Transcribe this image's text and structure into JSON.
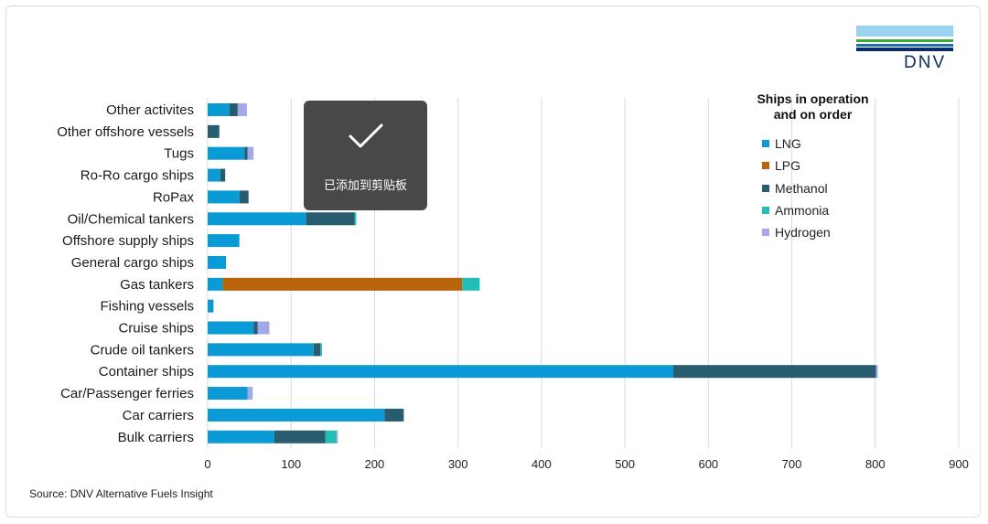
{
  "source_text": "Source: DNV Alternative Fuels Insight",
  "logo_text": "DNV",
  "toast": {
    "text": "已添加到剪贴板",
    "icon": "checkmark-icon"
  },
  "chart_data": {
    "type": "bar",
    "orientation": "horizontal",
    "stacked": true,
    "legend_title": "Ships in operation\nand on order",
    "legend_position": "right",
    "grid": true,
    "xlim": [
      0,
      900
    ],
    "xticks": [
      0,
      100,
      200,
      300,
      400,
      500,
      600,
      700,
      800,
      900
    ],
    "categories": [
      "Other activites",
      "Other offshore vessels",
      "Tugs",
      "Ro-Ro cargo ships",
      "RoPax",
      "Oil/Chemical tankers",
      "Offshore supply ships",
      "General cargo ships",
      "Gas tankers",
      "Fishing vessels",
      "Cruise ships",
      "Crude oil tankers",
      "Container ships",
      "Car/Passenger ferries",
      "Car carriers",
      "Bulk carriers"
    ],
    "series": [
      {
        "name": "LNG",
        "color": "#0a9ad6",
        "values": [
          26,
          0,
          44,
          15,
          38,
          118,
          38,
          22,
          18,
          7,
          55,
          127,
          558,
          48,
          212,
          80
        ]
      },
      {
        "name": "LPG",
        "color": "#b8640a",
        "values": [
          0,
          0,
          0,
          0,
          0,
          0,
          0,
          0,
          287,
          0,
          0,
          0,
          0,
          0,
          0,
          0
        ]
      },
      {
        "name": "Methanol",
        "color": "#275d6e",
        "values": [
          10,
          14,
          4,
          6,
          11,
          58,
          0,
          0,
          0,
          0,
          5,
          8,
          243,
          0,
          23,
          61
        ]
      },
      {
        "name": "Ammonia",
        "color": "#22bdb5",
        "values": [
          0,
          0,
          0,
          0,
          0,
          2,
          0,
          0,
          21,
          0,
          0,
          2,
          0,
          0,
          0,
          13
        ]
      },
      {
        "name": "Hydrogen",
        "color": "#a3a8ea",
        "values": [
          11,
          0,
          7,
          0,
          0,
          0,
          0,
          0,
          0,
          0,
          14,
          0,
          2,
          6,
          0,
          2
        ]
      }
    ]
  }
}
